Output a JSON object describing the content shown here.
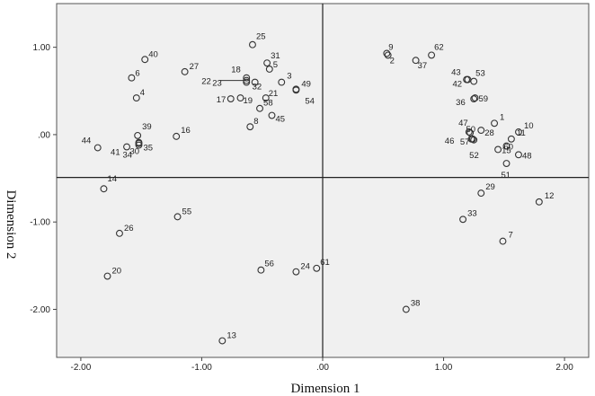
{
  "chart_data": {
    "type": "scatter",
    "title": "",
    "xlabel": "Dimension 1",
    "ylabel": "Dimension 2",
    "xlim": [
      -2.2,
      2.2
    ],
    "ylim": [
      -2.55,
      1.5
    ],
    "x_ticks": [
      -2.0,
      -1.0,
      0.0,
      1.0,
      2.0
    ],
    "x_tick_labels": [
      "-2.00",
      "-1.00",
      ".00",
      "1.00",
      "2.00"
    ],
    "y_ticks": [
      1.0,
      0.0,
      -1.0,
      -2.0
    ],
    "y_tick_labels": [
      "1.00",
      ".00",
      "-1.00",
      "-2.00"
    ],
    "reference_lines": {
      "vertical_x": 0.0,
      "horizontal_y": -0.49
    },
    "grid": false,
    "plot_background": "#f0f0f0",
    "marker_color": "#333333",
    "points": [
      {
        "label": "1",
        "x": 1.42,
        "y": 0.13
      },
      {
        "label": "2",
        "x": 0.54,
        "y": 0.91
      },
      {
        "label": "3",
        "x": -0.34,
        "y": 0.6
      },
      {
        "label": "4",
        "x": -1.54,
        "y": 0.42
      },
      {
        "label": "5",
        "x": -0.44,
        "y": 0.75
      },
      {
        "label": "6",
        "x": -1.58,
        "y": 0.65
      },
      {
        "label": "7",
        "x": 1.49,
        "y": -1.22
      },
      {
        "label": "8",
        "x": -0.6,
        "y": 0.09
      },
      {
        "label": "9",
        "x": 0.53,
        "y": 0.93
      },
      {
        "label": "10",
        "x": 1.62,
        "y": 0.03
      },
      {
        "label": "11",
        "x": 1.56,
        "y": -0.05
      },
      {
        "label": "12",
        "x": 1.79,
        "y": -0.77
      },
      {
        "label": "13",
        "x": -0.83,
        "y": -2.36
      },
      {
        "label": "14",
        "x": -1.81,
        "y": -0.62
      },
      {
        "label": "15",
        "x": 1.45,
        "y": -0.17
      },
      {
        "label": "16",
        "x": -1.21,
        "y": -0.02
      },
      {
        "label": "17",
        "x": -0.76,
        "y": 0.41
      },
      {
        "label": "18",
        "x": -0.63,
        "y": 0.65
      },
      {
        "label": "19",
        "x": -0.68,
        "y": 0.42
      },
      {
        "label": "20",
        "x": -1.78,
        "y": -1.62
      },
      {
        "label": "21",
        "x": -0.47,
        "y": 0.42
      },
      {
        "label": "22",
        "x": -0.63,
        "y": 0.62
      },
      {
        "label": "23",
        "x": -0.63,
        "y": 0.6
      },
      {
        "label": "24",
        "x": -0.22,
        "y": -1.57
      },
      {
        "label": "25",
        "x": -0.58,
        "y": 1.03
      },
      {
        "label": "26",
        "x": -1.68,
        "y": -1.13
      },
      {
        "label": "27",
        "x": -1.14,
        "y": 0.72
      },
      {
        "label": "28",
        "x": 1.31,
        "y": 0.05
      },
      {
        "label": "29",
        "x": 1.31,
        "y": -0.67
      },
      {
        "label": "30",
        "x": -1.52,
        "y": -0.09
      },
      {
        "label": "31",
        "x": -0.46,
        "y": 0.82
      },
      {
        "label": "32",
        "x": -0.56,
        "y": 0.6
      },
      {
        "label": "33",
        "x": 1.16,
        "y": -0.97
      },
      {
        "label": "34",
        "x": -1.52,
        "y": -0.1
      },
      {
        "label": "35",
        "x": -1.52,
        "y": -0.12
      },
      {
        "label": "36",
        "x": 1.25,
        "y": 0.41
      },
      {
        "label": "37",
        "x": 0.77,
        "y": 0.85
      },
      {
        "label": "38",
        "x": 0.69,
        "y": -2.0
      },
      {
        "label": "39",
        "x": -1.53,
        "y": -0.01
      },
      {
        "label": "40",
        "x": -1.47,
        "y": 0.86
      },
      {
        "label": "41",
        "x": -1.62,
        "y": -0.14
      },
      {
        "label": "42",
        "x": 1.2,
        "y": 0.63
      },
      {
        "label": "43",
        "x": 1.19,
        "y": 0.63
      },
      {
        "label": "44",
        "x": -1.86,
        "y": -0.15
      },
      {
        "label": "45",
        "x": -0.42,
        "y": 0.22
      },
      {
        "label": "46",
        "x": 1.21,
        "y": 0.03
      },
      {
        "label": "47",
        "x": 1.22,
        "y": 0.02
      },
      {
        "label": "48",
        "x": 1.62,
        "y": -0.23
      },
      {
        "label": "49",
        "x": -0.22,
        "y": 0.52
      },
      {
        "label": "50",
        "x": 1.23,
        "y": -0.05
      },
      {
        "label": "51",
        "x": 1.52,
        "y": -0.33
      },
      {
        "label": "52",
        "x": 1.25,
        "y": -0.06
      },
      {
        "label": "53",
        "x": 1.25,
        "y": 0.61
      },
      {
        "label": "54",
        "x": -0.22,
        "y": 0.51
      },
      {
        "label": "55",
        "x": -1.2,
        "y": -0.94
      },
      {
        "label": "56",
        "x": -0.51,
        "y": -1.55
      },
      {
        "label": "57",
        "x": 1.24,
        "y": -0.05
      },
      {
        "label": "58",
        "x": -0.52,
        "y": 0.3
      },
      {
        "label": "59",
        "x": 1.26,
        "y": 0.42
      },
      {
        "label": "60",
        "x": 1.52,
        "y": -0.13
      },
      {
        "label": "61",
        "x": -0.05,
        "y": -1.53
      },
      {
        "label": "62",
        "x": 0.9,
        "y": 0.91
      }
    ]
  }
}
